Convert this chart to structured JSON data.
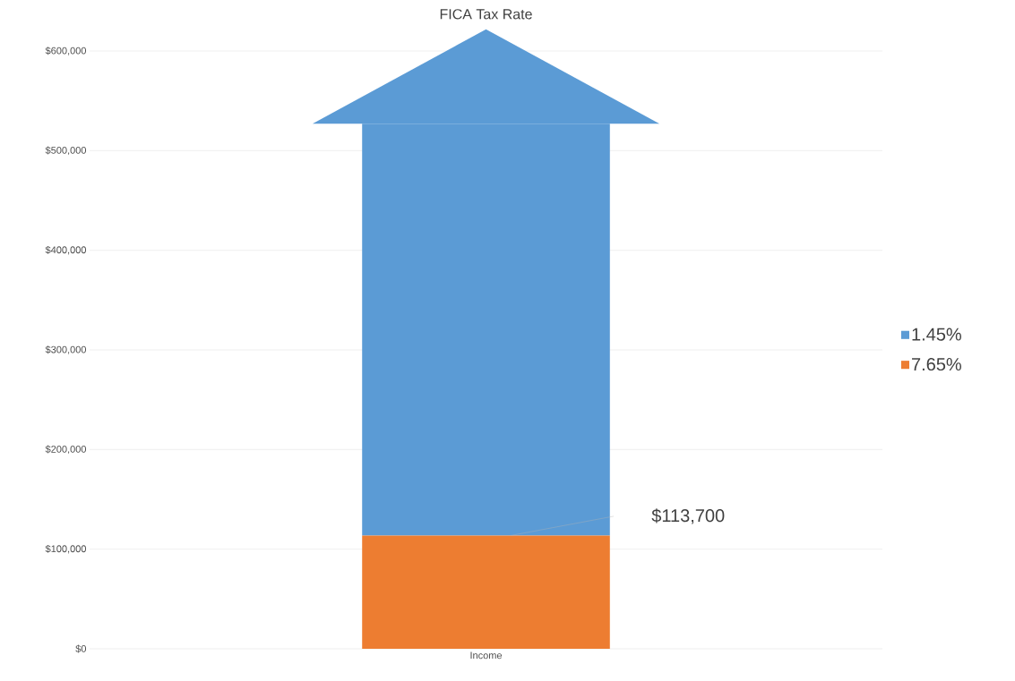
{
  "chart_data": {
    "type": "bar",
    "title": "FICA Tax Rate",
    "categories": [
      "Income"
    ],
    "stacked": true,
    "series": [
      {
        "name": "7.65%",
        "color": "#ed7d31",
        "values": [
          113700
        ]
      },
      {
        "name": "1.45%",
        "color": "#5b9bd5",
        "values": [
          413300
        ]
      }
    ],
    "ylim": [
      0,
      600000
    ],
    "yticks": [
      {
        "value": 0,
        "label": "$0"
      },
      {
        "value": 100000,
        "label": "$100,000"
      },
      {
        "value": 200000,
        "label": "$200,000"
      },
      {
        "value": 300000,
        "label": "$300,000"
      },
      {
        "value": 400000,
        "label": "$400,000"
      },
      {
        "value": 500000,
        "label": "$500,000"
      },
      {
        "value": 600000,
        "label": "$600,000"
      }
    ],
    "grid": "y",
    "legend": "right",
    "annotations": [
      "$113,700"
    ]
  }
}
